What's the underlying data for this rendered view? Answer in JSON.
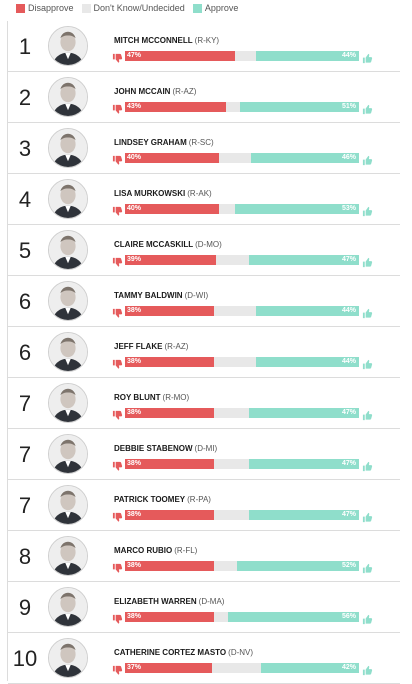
{
  "legend": {
    "disapprove": "Disapprove",
    "unknown": "Don't Know/Undecided",
    "approve": "Approve"
  },
  "colors": {
    "disapprove": "#e55a5b",
    "unknown": "#e8e8e8",
    "approve": "#8fdecb"
  },
  "chart_data": {
    "type": "bar",
    "stacked": true,
    "xlim": [
      0,
      100
    ],
    "series": [
      {
        "name": "Disapprove",
        "values": [
          47,
          43,
          40,
          40,
          39,
          38,
          38,
          38,
          38,
          38,
          38,
          38,
          37
        ]
      },
      {
        "name": "Don't Know/Undecided",
        "values": [
          9,
          6,
          14,
          7,
          14,
          18,
          18,
          15,
          15,
          15,
          10,
          6,
          21
        ]
      },
      {
        "name": "Approve",
        "values": [
          44,
          51,
          46,
          53,
          47,
          44,
          44,
          47,
          47,
          47,
          52,
          56,
          42
        ]
      }
    ],
    "rows": [
      {
        "rank": "1",
        "name": "MITCH MCCONNELL",
        "party": "(R-KY)",
        "disapprove": 47,
        "unknown": 9,
        "approve": 44,
        "disapprove_label": "47%",
        "approve_label": "44%"
      },
      {
        "rank": "2",
        "name": "JOHN MCCAIN",
        "party": "(R-AZ)",
        "disapprove": 43,
        "unknown": 6,
        "approve": 51,
        "disapprove_label": "43%",
        "approve_label": "51%"
      },
      {
        "rank": "3",
        "name": "LINDSEY GRAHAM",
        "party": "(R-SC)",
        "disapprove": 40,
        "unknown": 14,
        "approve": 46,
        "disapprove_label": "40%",
        "approve_label": "46%"
      },
      {
        "rank": "4",
        "name": "LISA MURKOWSKI",
        "party": "(R-AK)",
        "disapprove": 40,
        "unknown": 7,
        "approve": 53,
        "disapprove_label": "40%",
        "approve_label": "53%"
      },
      {
        "rank": "5",
        "name": "CLAIRE MCCASKILL",
        "party": "(D-MO)",
        "disapprove": 39,
        "unknown": 14,
        "approve": 47,
        "disapprove_label": "39%",
        "approve_label": "47%"
      },
      {
        "rank": "6",
        "name": "TAMMY BALDWIN",
        "party": "(D-WI)",
        "disapprove": 38,
        "unknown": 18,
        "approve": 44,
        "disapprove_label": "38%",
        "approve_label": "44%"
      },
      {
        "rank": "6",
        "name": "JEFF FLAKE",
        "party": "(R-AZ)",
        "disapprove": 38,
        "unknown": 18,
        "approve": 44,
        "disapprove_label": "38%",
        "approve_label": "44%"
      },
      {
        "rank": "7",
        "name": "ROY BLUNT",
        "party": "(R-MO)",
        "disapprove": 38,
        "unknown": 15,
        "approve": 47,
        "disapprove_label": "38%",
        "approve_label": "47%"
      },
      {
        "rank": "7",
        "name": "DEBBIE STABENOW",
        "party": "(D-MI)",
        "disapprove": 38,
        "unknown": 15,
        "approve": 47,
        "disapprove_label": "38%",
        "approve_label": "47%"
      },
      {
        "rank": "7",
        "name": "PATRICK TOOMEY",
        "party": "(R-PA)",
        "disapprove": 38,
        "unknown": 15,
        "approve": 47,
        "disapprove_label": "38%",
        "approve_label": "47%"
      },
      {
        "rank": "8",
        "name": "MARCO RUBIO",
        "party": "(R-FL)",
        "disapprove": 38,
        "unknown": 10,
        "approve": 52,
        "disapprove_label": "38%",
        "approve_label": "52%"
      },
      {
        "rank": "9",
        "name": "ELIZABETH WARREN",
        "party": "(D-MA)",
        "disapprove": 38,
        "unknown": 6,
        "approve": 56,
        "disapprove_label": "38%",
        "approve_label": "56%"
      },
      {
        "rank": "10",
        "name": "CATHERINE CORTEZ MASTO",
        "party": "(D-NV)",
        "disapprove": 37,
        "unknown": 21,
        "approve": 42,
        "disapprove_label": "37%",
        "approve_label": "42%"
      }
    ]
  }
}
